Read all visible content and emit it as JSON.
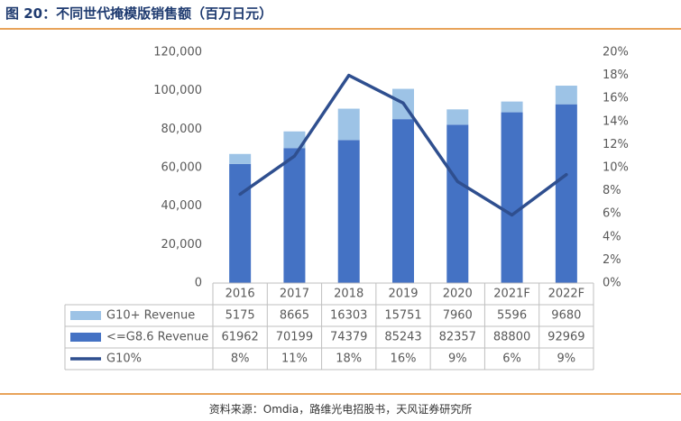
{
  "figure": {
    "title": "图 20：不同世代掩模版销售额（百万日元）",
    "source": "资料来源：Omdia，路维光电招股书，天风证券研究所"
  },
  "colors": {
    "g10_plus": "#9dc3e6",
    "g86": "#4472c4",
    "g10_line": "#2f4f8f",
    "accent_rule": "#e8a35a",
    "title_text": "#1f3b70"
  },
  "chart_data": {
    "type": "bar",
    "stacked": true,
    "categories": [
      "2016",
      "2017",
      "2018",
      "2019",
      "2020",
      "2021F",
      "2022F"
    ],
    "series": [
      {
        "name": "<=G8.6 Revenue",
        "values": [
          61962,
          70199,
          74379,
          85243,
          82357,
          88800,
          92969
        ],
        "kind": "bar",
        "axis": "left"
      },
      {
        "name": "G10+ Revenue",
        "values": [
          5175,
          8665,
          16303,
          15751,
          7960,
          5596,
          9680
        ],
        "kind": "bar",
        "axis": "left"
      },
      {
        "name": "G10%",
        "values": [
          7.7,
          11.0,
          18.0,
          15.6,
          8.8,
          5.9,
          9.4
        ],
        "kind": "line",
        "axis": "right"
      }
    ],
    "ylim": [
      0,
      120000
    ],
    "y_ticks": [
      "0",
      "20,000",
      "40,000",
      "60,000",
      "80,000",
      "100,000",
      "120,000"
    ],
    "y2lim": [
      0,
      20
    ],
    "y2_ticks": [
      "0%",
      "2%",
      "4%",
      "6%",
      "8%",
      "10%",
      "12%",
      "14%",
      "16%",
      "18%",
      "20%"
    ],
    "grid": false,
    "table": {
      "rows": [
        {
          "label": "G10+ Revenue",
          "cells": [
            "5175",
            "8665",
            "16303",
            "15751",
            "7960",
            "5596",
            "9680"
          ]
        },
        {
          "label": "<=G8.6 Revenue",
          "cells": [
            "61962",
            "70199",
            "74379",
            "85243",
            "82357",
            "88800",
            "92969"
          ]
        },
        {
          "label": "G10%",
          "cells": [
            "8%",
            "11%",
            "18%",
            "16%",
            "9%",
            "6%",
            "9%"
          ]
        }
      ]
    }
  }
}
